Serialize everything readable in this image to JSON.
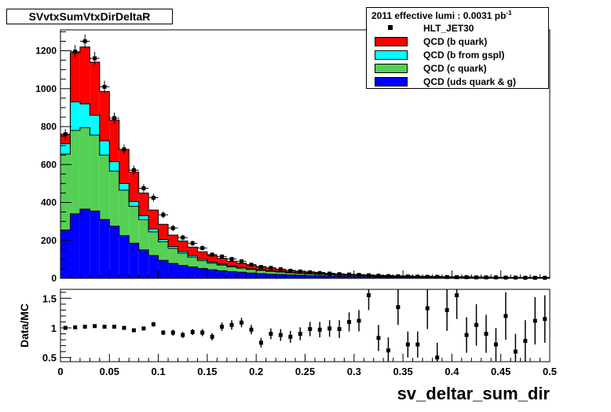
{
  "title": "SVvtxSumVtxDirDeltaR",
  "legend": {
    "header_prefix": "2011 effective lumi : 0.0031  pb",
    "header_sup": "-1",
    "entries": [
      {
        "label": "HLT_JET30",
        "kind": "marker",
        "color": "#000000"
      },
      {
        "label": "QCD (b quark)",
        "kind": "fill",
        "color": "#ff0000"
      },
      {
        "label": "QCD (b from gspl)",
        "kind": "fill",
        "color": "#00ffff"
      },
      {
        "label": "QCD (c quark)",
        "kind": "fill",
        "color": "#55d055"
      },
      {
        "label": "QCD (uds quark & g)",
        "kind": "fill",
        "color": "#0000ff"
      }
    ]
  },
  "chart_data": [
    {
      "type": "bar",
      "stacked": true,
      "xlim": [
        0,
        0.5
      ],
      "ylim": [
        0,
        1310
      ],
      "yticks": [
        0,
        200,
        400,
        600,
        800,
        1000,
        1200
      ],
      "bin_width": 0.01,
      "x": [
        0.005,
        0.015,
        0.025,
        0.035,
        0.045,
        0.055,
        0.065,
        0.075,
        0.085,
        0.095,
        0.105,
        0.115,
        0.125,
        0.135,
        0.145,
        0.155,
        0.165,
        0.175,
        0.185,
        0.195,
        0.205,
        0.215,
        0.225,
        0.235,
        0.245,
        0.255,
        0.265,
        0.275,
        0.285,
        0.295,
        0.305,
        0.315,
        0.325,
        0.335,
        0.345,
        0.355,
        0.365,
        0.375,
        0.385,
        0.395,
        0.405,
        0.415,
        0.425,
        0.435,
        0.445,
        0.455,
        0.465,
        0.475,
        0.485,
        0.495
      ],
      "series": [
        {
          "name": "QCD (uds quark & g)",
          "color": "#0000ff",
          "values": [
            255,
            340,
            365,
            355,
            310,
            275,
            225,
            185,
            150,
            120,
            95,
            78,
            68,
            60,
            52,
            45,
            40,
            35,
            32,
            28,
            25,
            22,
            20,
            18,
            16,
            14,
            13,
            12,
            11,
            10,
            9,
            8,
            7,
            7,
            6,
            6,
            5,
            5,
            5,
            4,
            4,
            4,
            3,
            3,
            3,
            3,
            2,
            2,
            2,
            2
          ]
        },
        {
          "name": "QCD (c quark)",
          "color": "#55d055",
          "values": [
            400,
            440,
            430,
            400,
            340,
            290,
            240,
            195,
            160,
            125,
            98,
            80,
            65,
            52,
            42,
            35,
            30,
            26,
            22,
            19,
            17,
            15,
            13,
            11,
            10,
            9,
            8,
            7,
            6,
            6,
            5,
            5,
            4,
            4,
            3,
            3,
            3,
            3,
            2,
            2,
            2,
            2,
            2,
            2,
            1,
            1,
            1,
            1,
            1,
            1
          ]
        },
        {
          "name": "QCD (b from gspl)",
          "color": "#00ffff",
          "values": [
            55,
            150,
            125,
            105,
            75,
            50,
            35,
            25,
            20,
            15,
            12,
            10,
            9,
            8,
            7,
            6,
            5,
            4,
            4,
            3,
            3,
            3,
            2,
            2,
            2,
            2,
            2,
            1,
            1,
            1,
            1,
            1,
            1,
            1,
            1,
            1,
            1,
            1,
            1,
            1,
            1,
            1,
            1,
            1,
            1,
            1,
            1,
            1,
            1,
            1
          ]
        },
        {
          "name": "QCD (b quark)",
          "color": "#ff0000",
          "values": [
            50,
            260,
            300,
            280,
            260,
            220,
            180,
            155,
            120,
            100,
            80,
            60,
            55,
            45,
            39,
            34,
            30,
            25,
            22,
            20,
            17,
            15,
            13,
            11,
            10,
            9,
            8,
            7,
            6,
            5,
            5,
            4,
            4,
            3,
            3,
            3,
            2,
            2,
            2,
            2,
            2,
            2,
            2,
            1,
            1,
            1,
            1,
            1,
            1,
            1
          ]
        }
      ],
      "data": {
        "name": "HLT_JET30",
        "values": [
          760,
          1195,
          1250,
          1160,
          1010,
          845,
          680,
          570,
          475,
          425,
          335,
          265,
          215,
          185,
          160,
          125,
          115,
          102,
          90,
          72,
          60,
          55,
          48,
          40,
          36,
          32,
          28,
          25,
          22,
          20,
          18,
          16,
          14,
          12,
          11,
          10,
          9,
          8,
          8,
          7,
          6,
          6,
          5,
          5,
          5,
          4,
          4,
          3,
          3,
          3
        ]
      }
    },
    {
      "type": "scatter",
      "ylabel": "Data/MC",
      "xlabel": "sv_deltar_sum_dir",
      "xlim": [
        0,
        0.5
      ],
      "ylim": [
        0.43,
        1.65
      ],
      "yticks": [
        0.5,
        1,
        1.5
      ],
      "xticks": [
        0,
        0.05,
        0.1,
        0.15,
        0.2,
        0.25,
        0.3,
        0.35,
        0.4,
        0.45,
        0.5
      ],
      "xtick_labels": [
        "0",
        "0.05",
        "0.1",
        "0.15",
        "0.2",
        "0.25",
        "0.3",
        "0.35",
        "0.4",
        "0.45",
        "0.5"
      ],
      "x": [
        0.005,
        0.015,
        0.025,
        0.035,
        0.045,
        0.055,
        0.065,
        0.075,
        0.085,
        0.095,
        0.105,
        0.115,
        0.125,
        0.135,
        0.145,
        0.155,
        0.165,
        0.175,
        0.185,
        0.195,
        0.205,
        0.215,
        0.225,
        0.235,
        0.245,
        0.255,
        0.265,
        0.275,
        0.285,
        0.295,
        0.305,
        0.315,
        0.325,
        0.335,
        0.345,
        0.355,
        0.365,
        0.375,
        0.385,
        0.395,
        0.405,
        0.415,
        0.425,
        0.435,
        0.445,
        0.455,
        0.465,
        0.475,
        0.485,
        0.495
      ],
      "y": [
        1.0,
        1.01,
        1.02,
        1.03,
        1.02,
        1.02,
        1.0,
        0.96,
        0.99,
        1.06,
        0.92,
        0.92,
        0.88,
        0.93,
        0.92,
        0.85,
        1.02,
        1.05,
        1.09,
        0.97,
        0.75,
        0.9,
        0.88,
        0.85,
        0.9,
        0.98,
        0.97,
        0.99,
        0.98,
        1.1,
        1.12,
        1.55,
        0.83,
        0.62,
        1.35,
        0.72,
        0.72,
        1.33,
        0.5,
        1.3,
        1.55,
        0.88,
        1.05,
        0.9,
        0.72,
        1.2,
        0.6,
        0.78,
        1.12,
        1.15
      ],
      "yerr": [
        0.02,
        0.02,
        0.02,
        0.02,
        0.02,
        0.02,
        0.03,
        0.03,
        0.03,
        0.04,
        0.04,
        0.05,
        0.05,
        0.05,
        0.06,
        0.06,
        0.07,
        0.08,
        0.08,
        0.08,
        0.08,
        0.09,
        0.1,
        0.1,
        0.11,
        0.12,
        0.13,
        0.14,
        0.15,
        0.16,
        0.18,
        0.25,
        0.22,
        0.22,
        0.3,
        0.22,
        0.22,
        0.35,
        0.25,
        0.35,
        0.4,
        0.3,
        0.35,
        0.32,
        0.28,
        0.4,
        0.3,
        0.35,
        0.4,
        0.4
      ]
    }
  ]
}
